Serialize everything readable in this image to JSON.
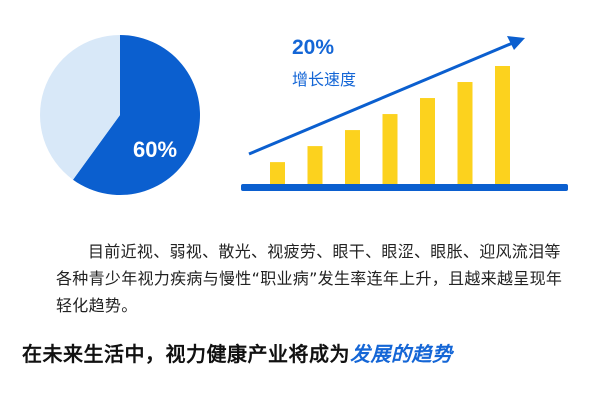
{
  "chart_data": [
    {
      "type": "pie",
      "values": [
        60,
        40
      ],
      "labels": [
        "60%",
        ""
      ],
      "colors": [
        "#0b5fcf",
        "#d8e8f8"
      ]
    },
    {
      "type": "bar",
      "values": [
        1,
        1.7,
        2.4,
        3.1,
        3.8,
        4.5,
        5.2
      ],
      "annotation_value": "20%",
      "annotation_label": "增长速度",
      "bar_color": "#fcd21e",
      "axis_color": "#0b5fcf",
      "trend_arrow": true
    }
  ],
  "paragraph": "目前近视、弱视、散光、视疲劳、眼干、眼涩、眼胀、迎风流泪等各种青少年视力疾病与慢性“职业病”发生率连年上升，且越来越呈现年轻化趋势。",
  "conclusion": {
    "text": "在未来生活中，视力健康产业将成为",
    "highlight": "发展的趋势"
  }
}
